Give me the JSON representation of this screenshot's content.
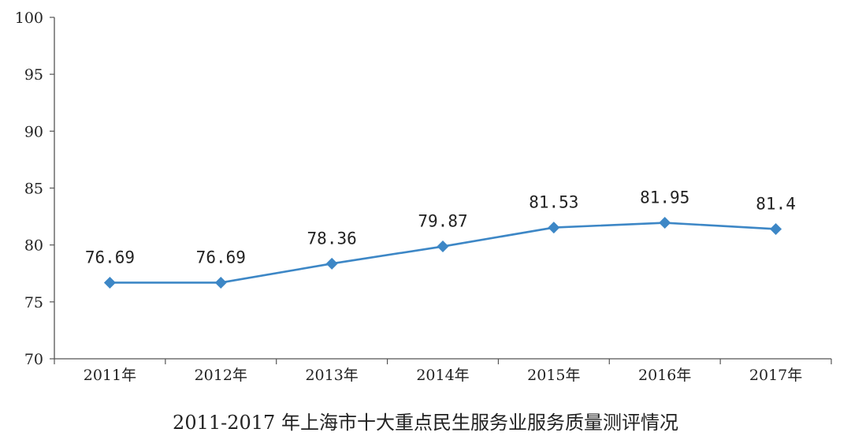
{
  "chart_data": {
    "type": "line",
    "title": "2011-2017 年上海市十大重点民生服务业服务质量测评情况",
    "xlabel": "",
    "ylabel": "",
    "categories": [
      "2011年",
      "2012年",
      "2013年",
      "2014年",
      "2015年",
      "2016年",
      "2017年"
    ],
    "series": [
      {
        "values": [
          76.69,
          76.69,
          78.36,
          79.87,
          81.53,
          81.95,
          81.4
        ]
      }
    ],
    "data_labels": [
      "76.69",
      "76.69",
      "78.36",
      "79.87",
      "81.53",
      "81.95",
      "81.4"
    ],
    "ylim": [
      70,
      100
    ],
    "yticks": [
      70,
      75,
      80,
      85,
      90,
      95,
      100
    ],
    "grid": false,
    "legend": "none",
    "marker": "diamond",
    "colors": {
      "line": "#3d87c6",
      "marker": "#3d87c6",
      "axis": "#555555",
      "text": "#222222"
    }
  }
}
